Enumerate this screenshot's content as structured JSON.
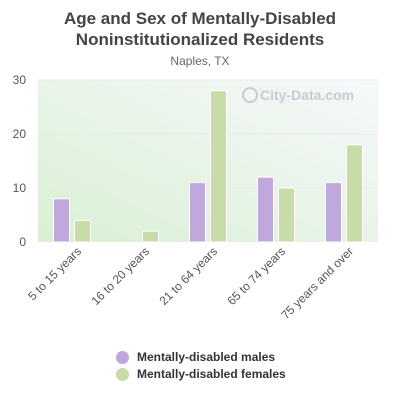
{
  "page": {
    "title_line1": "Age and Sex of Mentally-Disabled",
    "title_line2": "Noninstitutionalized Residents",
    "subtitle": "Naples, TX",
    "watermark": "City-Data.com"
  },
  "colors": {
    "males": "#c0a8dc",
    "females": "#c8dca8",
    "axis_text": "#555555",
    "grid": "#e6ece6"
  },
  "chart_data": {
    "type": "bar",
    "title": "Age and Sex of Mentally-Disabled Noninstitutionalized Residents",
    "subtitle": "Naples, TX",
    "categories": [
      "5 to 15 years",
      "16 to 20 years",
      "21 to 64 years",
      "65 to 74 years",
      "75 years and over"
    ],
    "series": [
      {
        "name": "Mentally-disabled males",
        "values": [
          8,
          0,
          11,
          12,
          11
        ]
      },
      {
        "name": "Mentally-disabled females",
        "values": [
          4,
          2,
          28,
          10,
          18
        ]
      }
    ],
    "yticks": [
      0,
      10,
      20,
      30
    ],
    "ylim": [
      0,
      30
    ],
    "grid": true,
    "legend": "bottom"
  }
}
